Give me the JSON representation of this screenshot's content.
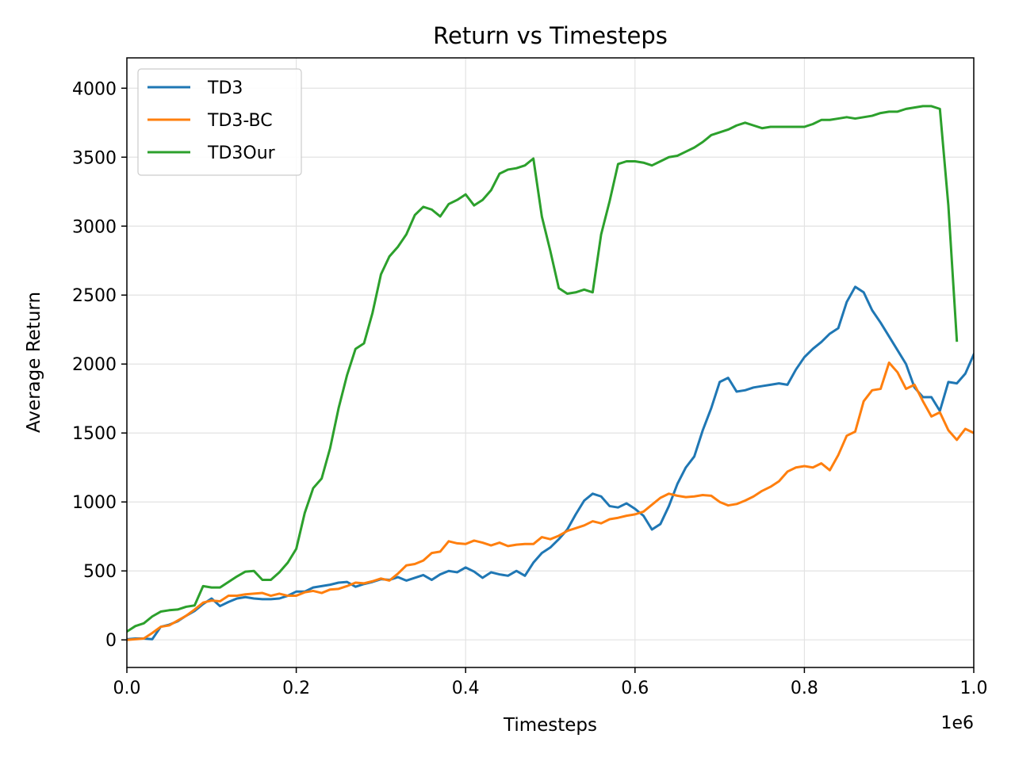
{
  "chart_data": {
    "type": "line",
    "title": "Return vs Timesteps",
    "xlabel": "Timesteps",
    "ylabel": "Average Return",
    "x_offset_label": "1e6",
    "xlim": [
      0.0,
      1.0
    ],
    "ylim": [
      -200,
      4220
    ],
    "grid": true,
    "legend_position": "top-left",
    "x_ticks": [
      0.0,
      0.2,
      0.4,
      0.6,
      0.8,
      1.0
    ],
    "x_tick_labels": [
      "0.0",
      "0.2",
      "0.4",
      "0.6",
      "0.8",
      "1.0"
    ],
    "y_ticks": [
      0,
      500,
      1000,
      1500,
      2000,
      2500,
      3000,
      3500,
      4000
    ],
    "y_tick_labels": [
      "0",
      "500",
      "1000",
      "1500",
      "2000",
      "2500",
      "3000",
      "3500",
      "4000"
    ],
    "x": [
      0.0,
      0.01,
      0.02,
      0.03,
      0.04,
      0.05,
      0.06,
      0.07,
      0.08,
      0.09,
      0.1,
      0.11,
      0.12,
      0.13,
      0.14,
      0.15,
      0.16,
      0.17,
      0.18,
      0.19,
      0.2,
      0.21,
      0.22,
      0.23,
      0.24,
      0.25,
      0.26,
      0.27,
      0.28,
      0.29,
      0.3,
      0.31,
      0.32,
      0.33,
      0.34,
      0.35,
      0.36,
      0.37,
      0.38,
      0.39,
      0.4,
      0.41,
      0.42,
      0.43,
      0.44,
      0.45,
      0.46,
      0.47,
      0.48,
      0.49,
      0.5,
      0.51,
      0.52,
      0.53,
      0.54,
      0.55,
      0.56,
      0.57,
      0.58,
      0.59,
      0.6,
      0.61,
      0.62,
      0.63,
      0.64,
      0.65,
      0.66,
      0.67,
      0.68,
      0.69,
      0.7,
      0.71,
      0.72,
      0.73,
      0.74,
      0.75,
      0.76,
      0.77,
      0.78,
      0.79,
      0.8,
      0.81,
      0.82,
      0.83,
      0.84,
      0.85,
      0.86,
      0.87,
      0.88,
      0.89,
      0.9,
      0.91,
      0.92,
      0.93,
      0.94,
      0.95,
      0.96,
      0.97,
      0.98,
      0.99,
      1.0
    ],
    "series": [
      {
        "name": "TD3",
        "color": "#1f77b4",
        "values": [
          5,
          10,
          10,
          5,
          95,
          110,
          135,
          175,
          210,
          260,
          300,
          245,
          275,
          300,
          310,
          300,
          295,
          295,
          300,
          320,
          350,
          350,
          380,
          390,
          400,
          415,
          420,
          385,
          405,
          420,
          440,
          435,
          455,
          430,
          450,
          470,
          435,
          475,
          500,
          490,
          525,
          495,
          450,
          490,
          475,
          465,
          500,
          465,
          560,
          630,
          670,
          730,
          800,
          910,
          1010,
          1060,
          1040,
          970,
          960,
          990,
          950,
          900,
          800,
          840,
          970,
          1130,
          1250,
          1330,
          1520,
          1680,
          1870,
          1900,
          1800,
          1810,
          1830,
          1840,
          1850,
          1860,
          1850,
          1960,
          2050,
          2110,
          2160,
          2220,
          2260,
          2450,
          2560,
          2520,
          2390,
          2300,
          2200,
          2100,
          2000,
          1830,
          1760,
          1760,
          1660,
          1870,
          1860,
          1930,
          2070
        ]
      },
      {
        "name": "TD3-BC",
        "color": "#ff7f0e",
        "values": [
          0,
          5,
          10,
          50,
          95,
          105,
          140,
          175,
          220,
          270,
          285,
          280,
          320,
          320,
          330,
          335,
          340,
          320,
          335,
          320,
          320,
          345,
          355,
          340,
          365,
          370,
          390,
          415,
          410,
          425,
          445,
          430,
          480,
          540,
          550,
          575,
          630,
          640,
          715,
          700,
          695,
          720,
          705,
          685,
          705,
          680,
          690,
          695,
          695,
          745,
          730,
          755,
          790,
          810,
          830,
          860,
          845,
          875,
          885,
          900,
          910,
          930,
          980,
          1030,
          1060,
          1045,
          1035,
          1040,
          1050,
          1045,
          1000,
          975,
          985,
          1010,
          1040,
          1080,
          1110,
          1150,
          1220,
          1250,
          1260,
          1250,
          1280,
          1230,
          1340,
          1480,
          1510,
          1730,
          1810,
          1820,
          2010,
          1940,
          1820,
          1850,
          1730,
          1620,
          1650,
          1520,
          1450,
          1530,
          1500
        ]
      },
      {
        "name": "TD3Our",
        "color": "#2ca02c",
        "values": [
          60,
          100,
          120,
          170,
          205,
          215,
          220,
          240,
          250,
          390,
          380,
          380,
          420,
          460,
          495,
          500,
          435,
          435,
          490,
          560,
          660,
          920,
          1100,
          1170,
          1390,
          1680,
          1920,
          2110,
          2150,
          2370,
          2650,
          2780,
          2850,
          2940,
          3080,
          3140,
          3120,
          3070,
          3160,
          3190,
          3230,
          3150,
          3190,
          3260,
          3380,
          3410,
          3420,
          3440,
          3490,
          3070,
          2820,
          2550,
          2510,
          2520,
          2540,
          2520,
          2940,
          3180,
          3450,
          3470,
          3470,
          3460,
          3440,
          3470,
          3500,
          3510,
          3540,
          3570,
          3610,
          3660,
          3680,
          3700,
          3730,
          3750,
          3730,
          3710,
          3720,
          3720,
          3720,
          3720,
          3720,
          3740,
          3770,
          3770,
          3780,
          3790,
          3780,
          3790,
          3800,
          3820,
          3830,
          3830,
          3850,
          3860,
          3870,
          3870,
          3850,
          3150,
          2170,
          null,
          null
        ]
      }
    ]
  }
}
